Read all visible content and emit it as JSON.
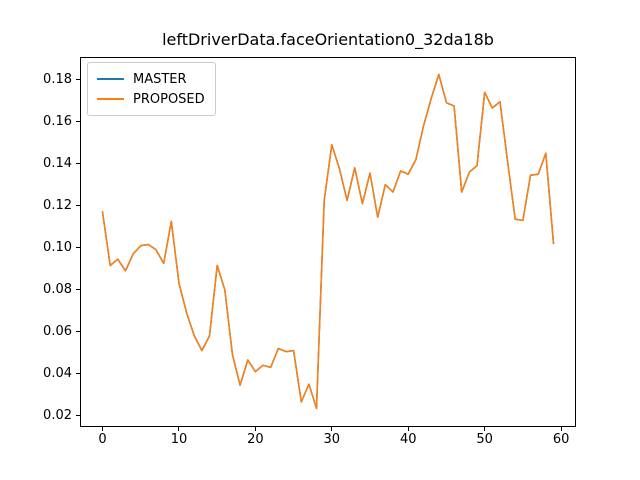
{
  "figure": {
    "background": "#ffffff",
    "title": "leftDriverData.faceOrientation0_32da18b"
  },
  "chart_data": {
    "type": "line",
    "title": "leftDriverData.faceOrientation0_32da18b",
    "xlabel": "",
    "ylabel": "",
    "grid": false,
    "legend_position": "upper-left",
    "xlim": [
      -2.95,
      61.95
    ],
    "ylim": [
      0.0145,
      0.1905
    ],
    "xticks": [
      0,
      10,
      20,
      30,
      40,
      50,
      60
    ],
    "yticks": [
      0.02,
      0.04,
      0.06,
      0.08,
      0.1,
      0.12,
      0.14,
      0.16,
      0.18
    ],
    "x": [
      0,
      1,
      2,
      3,
      4,
      5,
      6,
      7,
      8,
      9,
      10,
      11,
      12,
      13,
      14,
      15,
      16,
      17,
      18,
      19,
      20,
      21,
      22,
      23,
      24,
      25,
      26,
      27,
      28,
      29,
      30,
      31,
      32,
      33,
      34,
      35,
      36,
      37,
      38,
      39,
      40,
      41,
      42,
      43,
      44,
      45,
      46,
      47,
      48,
      49,
      50,
      51,
      52,
      53,
      54,
      55,
      56,
      57,
      58,
      59
    ],
    "series": [
      {
        "name": "MASTER",
        "color": "#1f77b4",
        "values": [
          0.117,
          0.0915,
          0.0945,
          0.089,
          0.097,
          0.101,
          0.1015,
          0.099,
          0.0925,
          0.1125,
          0.083,
          0.069,
          0.058,
          0.051,
          0.058,
          0.0915,
          0.08,
          0.049,
          0.0345,
          0.0465,
          0.041,
          0.044,
          0.043,
          0.052,
          0.0505,
          0.051,
          0.0265,
          0.035,
          0.0235,
          0.1225,
          0.149,
          0.1375,
          0.1225,
          0.138,
          0.121,
          0.1355,
          0.1145,
          0.13,
          0.1265,
          0.1365,
          0.135,
          0.142,
          0.158,
          0.171,
          0.1825,
          0.169,
          0.1675,
          0.1265,
          0.136,
          0.139,
          0.174,
          0.1665,
          0.1695,
          0.141,
          0.1135,
          0.113,
          0.1345,
          0.135,
          0.145,
          0.102
        ]
      },
      {
        "name": "PROPOSED",
        "color": "#ff7f0e",
        "values": [
          0.117,
          0.0915,
          0.0945,
          0.089,
          0.097,
          0.101,
          0.1015,
          0.099,
          0.0925,
          0.1125,
          0.083,
          0.069,
          0.058,
          0.051,
          0.058,
          0.0915,
          0.08,
          0.049,
          0.0345,
          0.0465,
          0.041,
          0.044,
          0.043,
          0.052,
          0.0505,
          0.051,
          0.0265,
          0.035,
          0.0235,
          0.1225,
          0.149,
          0.1375,
          0.1225,
          0.138,
          0.121,
          0.1355,
          0.1145,
          0.13,
          0.1265,
          0.1365,
          0.135,
          0.142,
          0.158,
          0.171,
          0.1825,
          0.169,
          0.1675,
          0.1265,
          0.136,
          0.139,
          0.174,
          0.1665,
          0.1695,
          0.141,
          0.1135,
          0.113,
          0.1345,
          0.135,
          0.145,
          0.102
        ]
      }
    ]
  }
}
